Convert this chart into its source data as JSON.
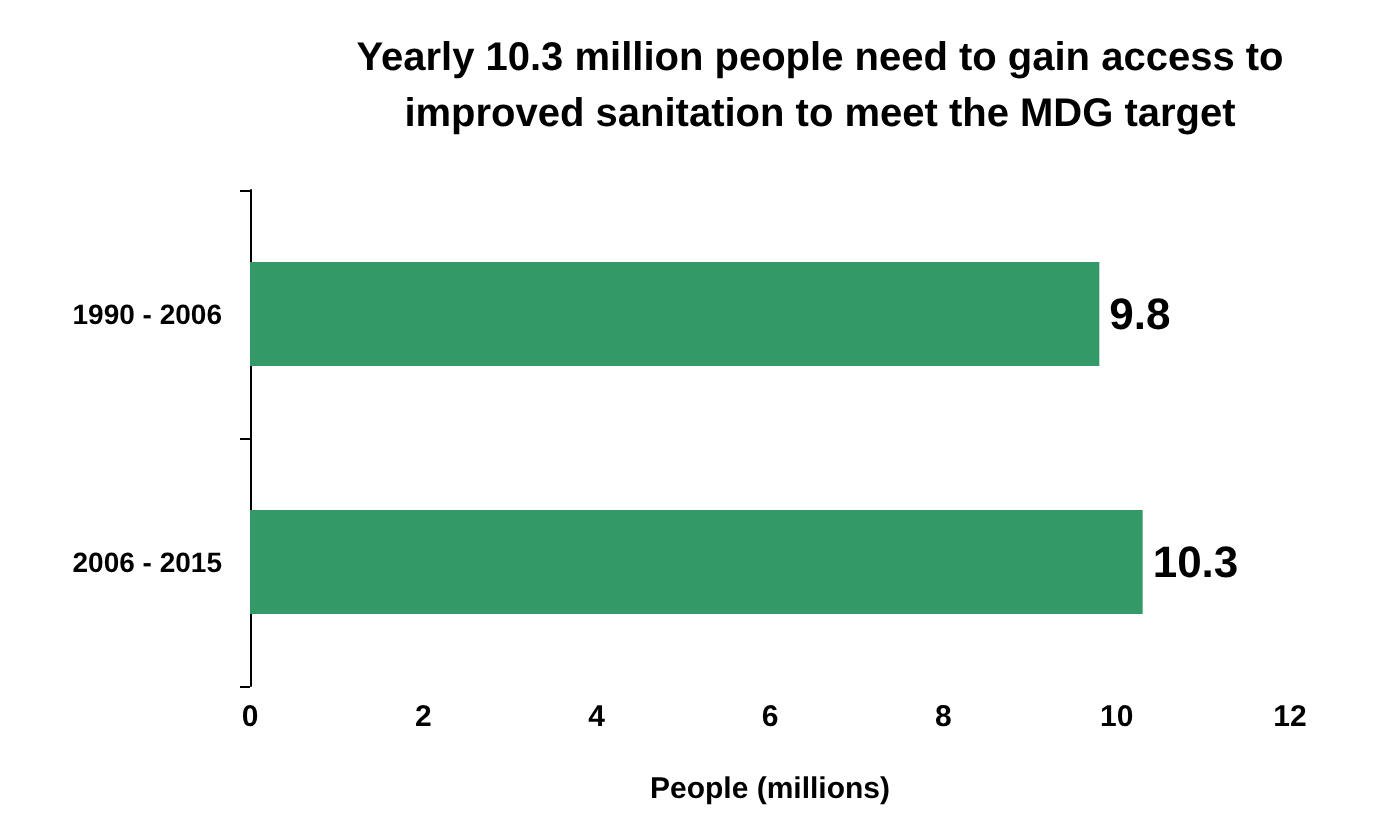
{
  "chart_data": {
    "type": "bar",
    "orientation": "horizontal",
    "title": "Yearly 10.3 million people need to gain access to\nimproved sanitation to meet the MDG target",
    "categories": [
      "1990 - 2006",
      "2006 - 2015"
    ],
    "values": [
      9.8,
      10.3
    ],
    "color": "#339966",
    "xlabel": "People (millions)",
    "xlim": [
      0,
      12
    ],
    "xticks": [
      0,
      2,
      4,
      6,
      8,
      10,
      12
    ],
    "data_labels": true,
    "grid": false
  }
}
